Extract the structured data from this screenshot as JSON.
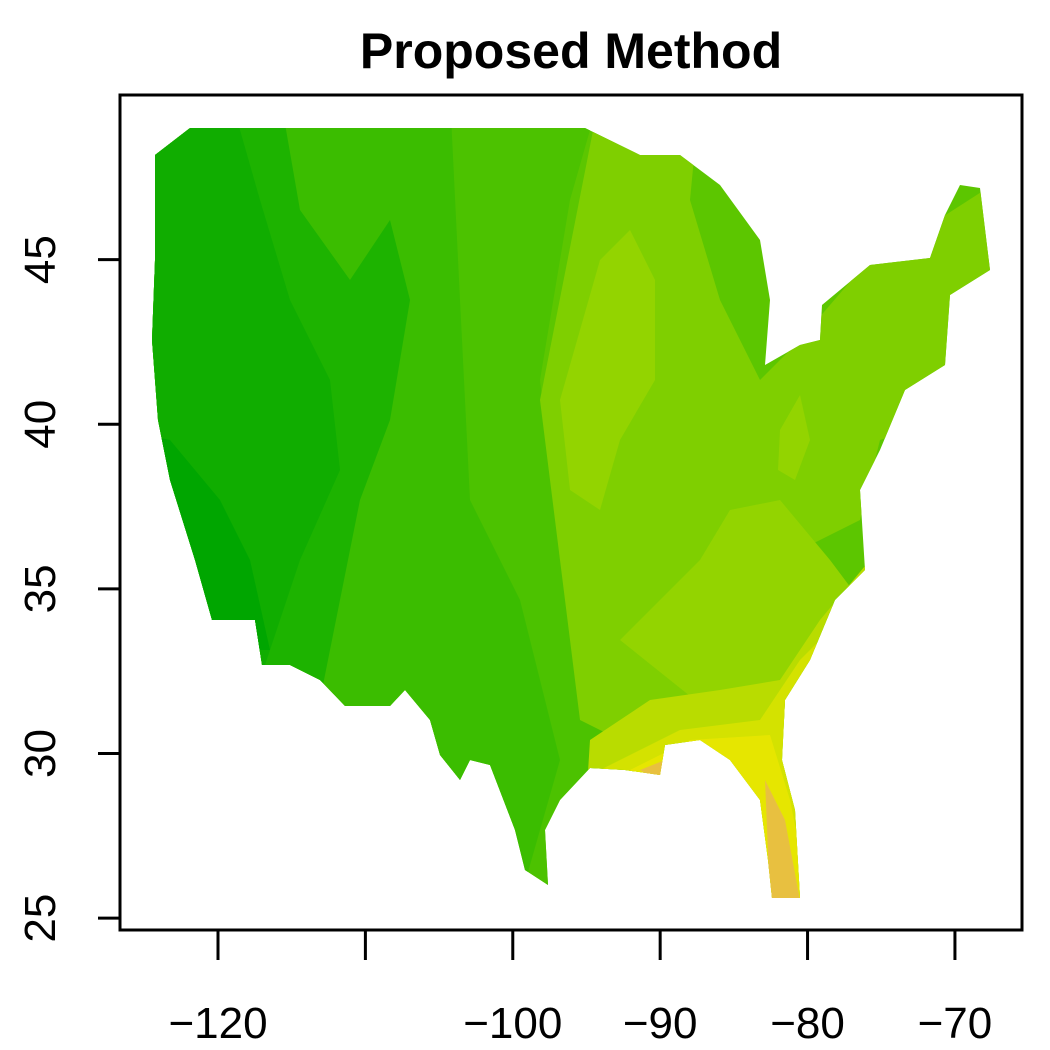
{
  "chart_data": {
    "type": "contour-map",
    "title": "Proposed Method",
    "xlim": [
      -126.65,
      -65.45
    ],
    "ylim": [
      24.64,
      50.0
    ],
    "xticks": [
      {
        "value": -120,
        "label": "−120"
      },
      {
        "value": -110,
        "label": null
      },
      {
        "value": -100,
        "label": "−100"
      },
      {
        "value": -90,
        "label": "−90"
      },
      {
        "value": -80,
        "label": "−80"
      },
      {
        "value": -70,
        "label": "−70"
      }
    ],
    "yticks": [
      25,
      30,
      35,
      40,
      45
    ]
  }
}
